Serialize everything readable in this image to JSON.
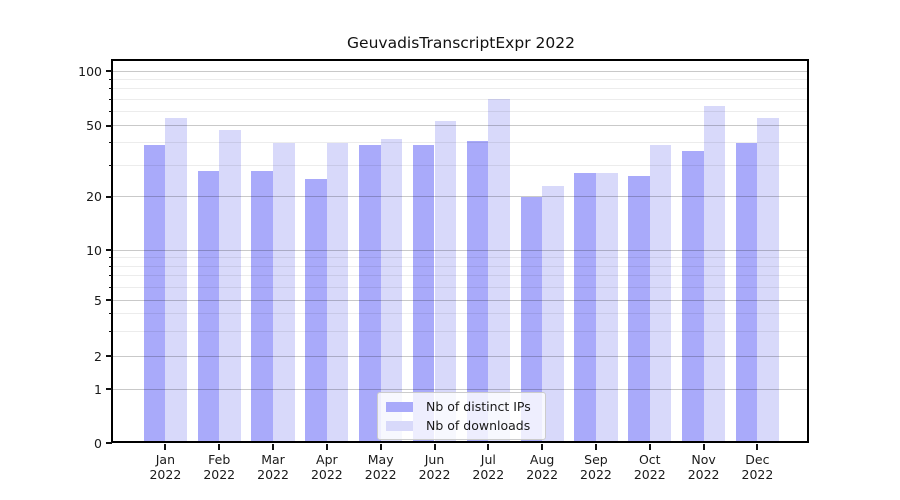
{
  "chart_data": {
    "type": "bar",
    "title": "GeuvadisTranscriptExpr 2022",
    "categories": [
      "Jan 2022",
      "Feb 2022",
      "Mar 2022",
      "Apr 2022",
      "May 2022",
      "Jun 2022",
      "Jul 2022",
      "Aug 2022",
      "Sep 2022",
      "Oct 2022",
      "Nov 2022",
      "Dec 2022"
    ],
    "category_line1": [
      "Jan",
      "Feb",
      "Mar",
      "Apr",
      "May",
      "Jun",
      "Jul",
      "Aug",
      "Sep",
      "Oct",
      "Nov",
      "Dec"
    ],
    "category_line2": "2022",
    "series": [
      {
        "name": "Nb of distinct IPs",
        "color": "#a9aafa",
        "values": [
          39,
          28,
          28,
          25,
          39,
          39,
          41,
          20,
          27,
          26,
          36,
          40
        ]
      },
      {
        "name": "Nb of downloads",
        "color": "#d8d9fa",
        "values": [
          55,
          47,
          40,
          40,
          42,
          53,
          70,
          23,
          27,
          39,
          64,
          55
        ]
      }
    ],
    "yaxis": {
      "scale": "symlog",
      "major_ticks": [
        0,
        1,
        2,
        5,
        10,
        20,
        50,
        100
      ],
      "minor_ticks": [
        3,
        4,
        6,
        7,
        8,
        9,
        30,
        40,
        60,
        70,
        80,
        90
      ],
      "range": [
        0,
        115
      ]
    },
    "xlabel": "",
    "ylabel": "",
    "grid": true,
    "legend": {
      "position": "lower center",
      "entries": [
        "Nb of distinct IPs",
        "Nb of downloads"
      ]
    }
  },
  "colors": {
    "background": "#ffffff",
    "spine": "#000000",
    "grid_major": "#c9c9c9",
    "grid_minor": "#ececec",
    "text": "#1a1a1a"
  }
}
